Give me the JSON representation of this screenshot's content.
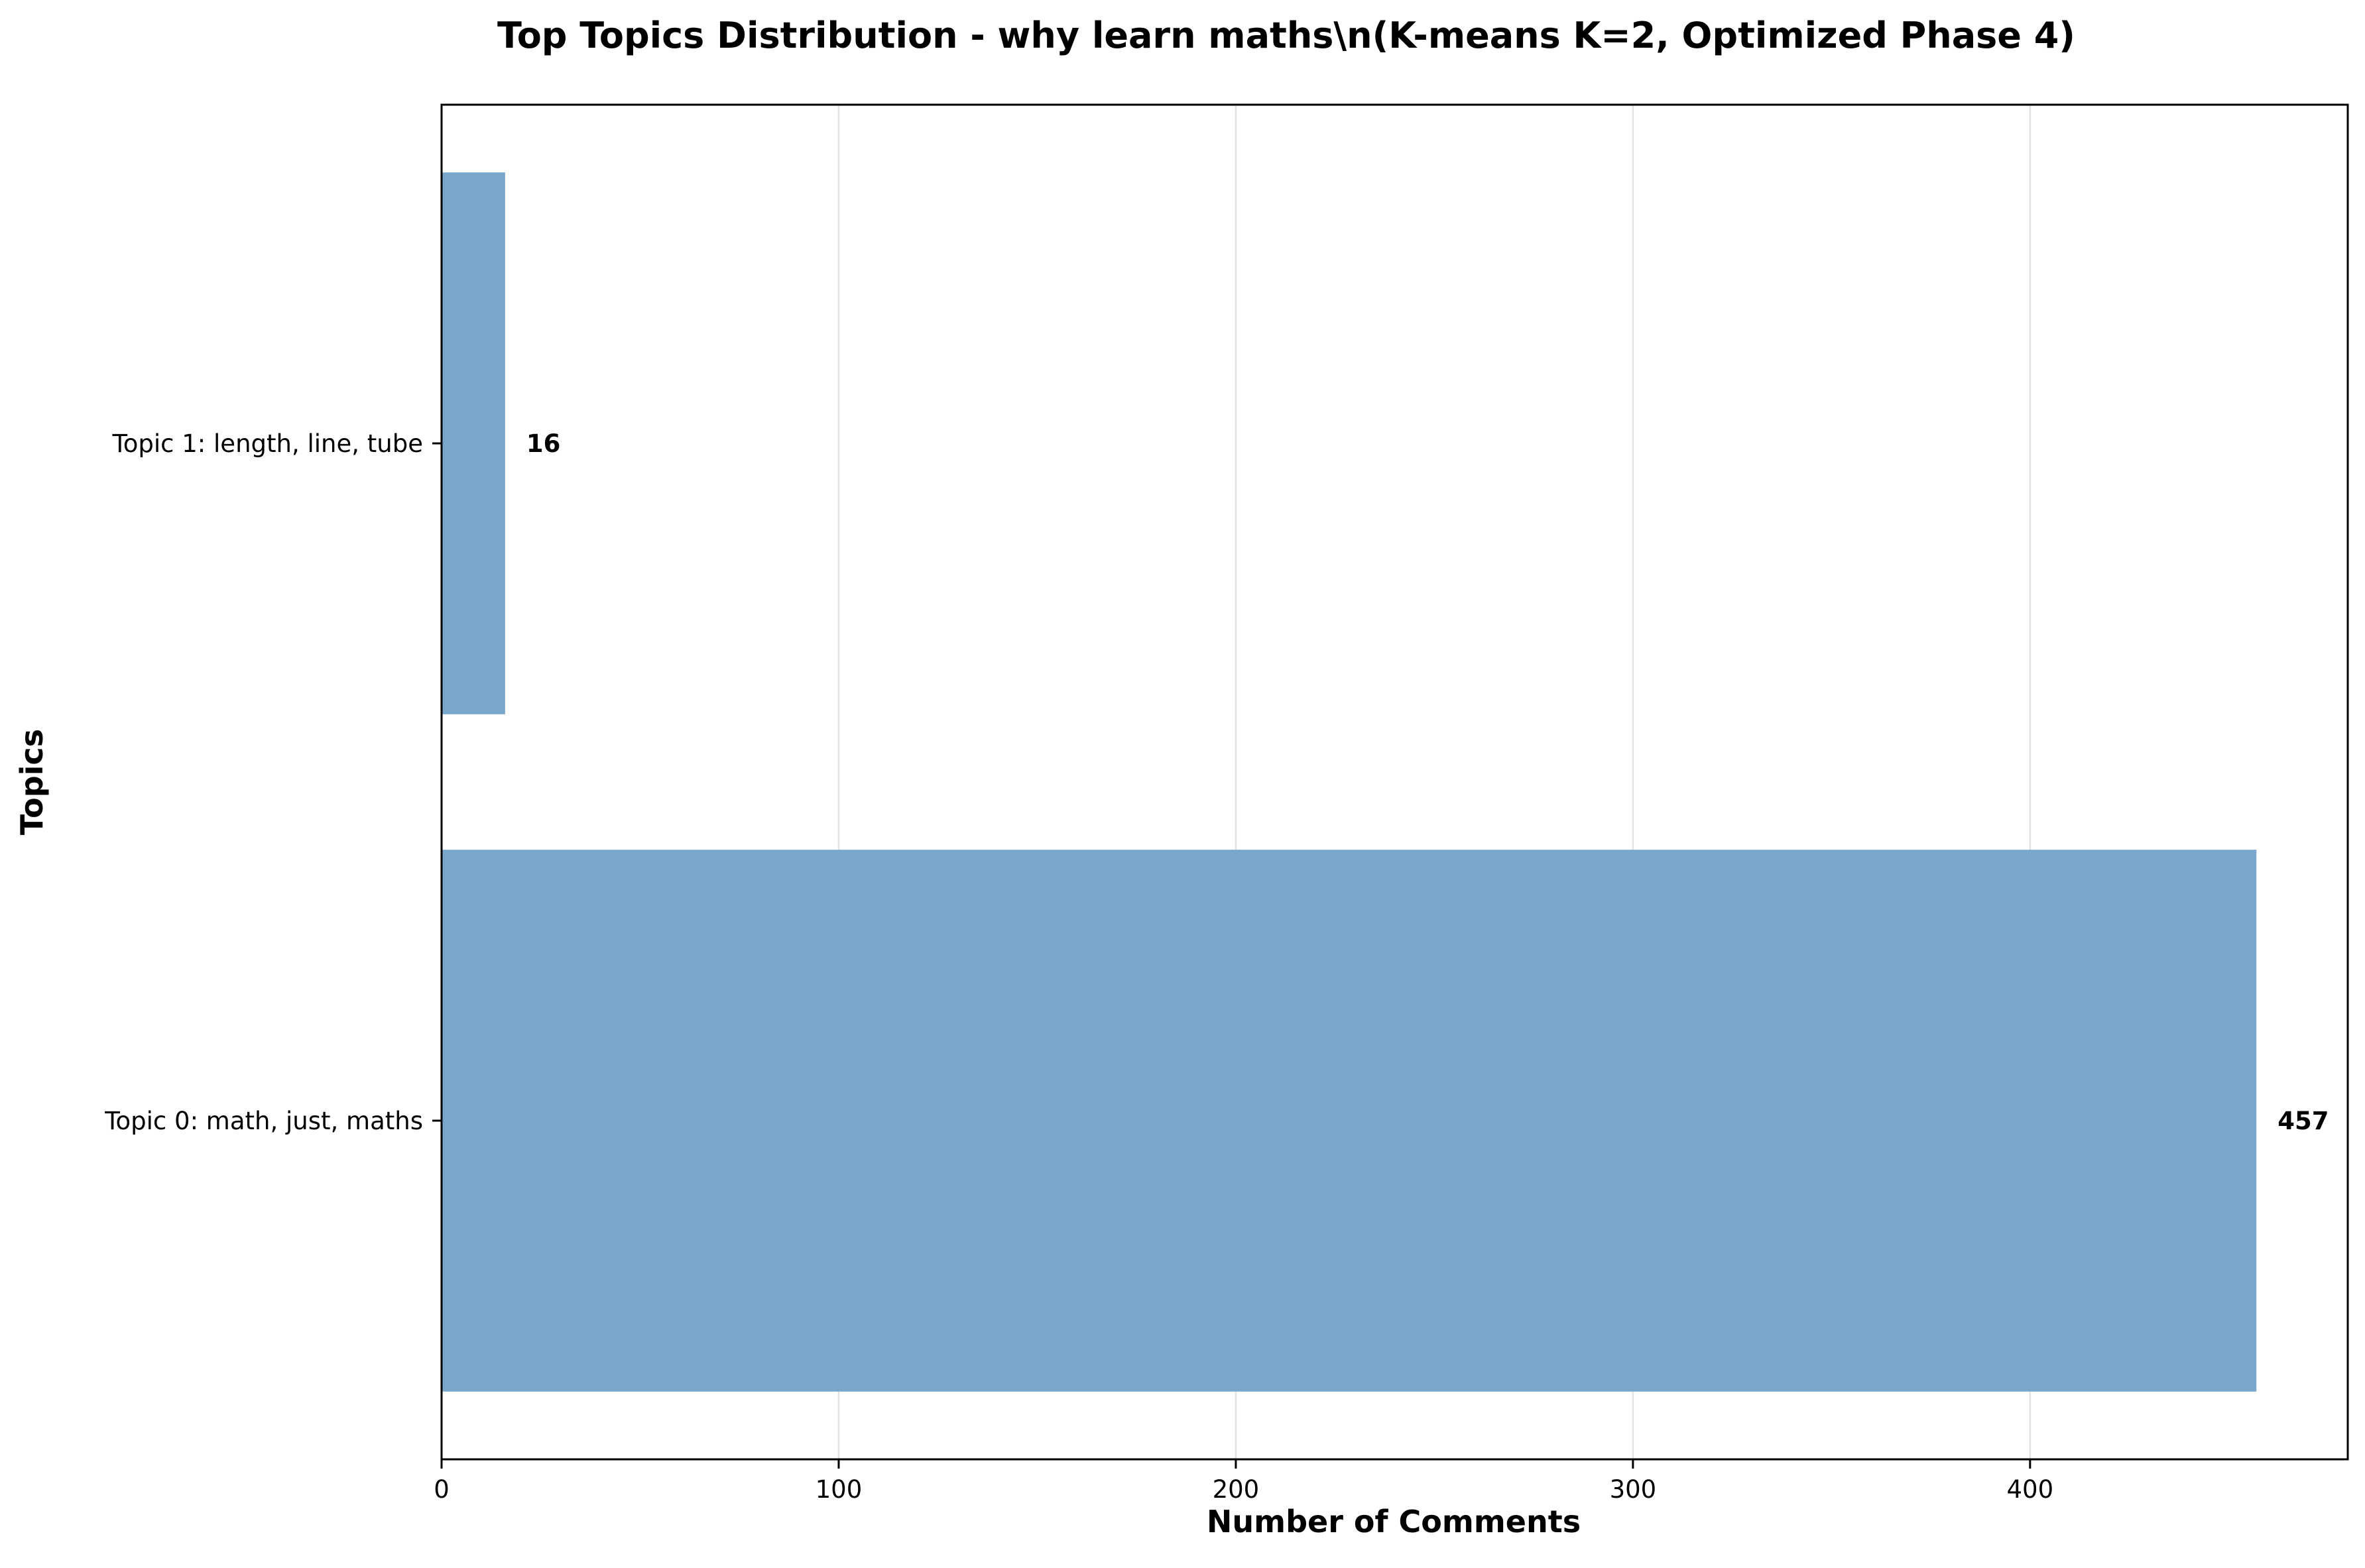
{
  "chart_data": {
    "type": "bar",
    "orientation": "horizontal",
    "title": "Top Topics Distribution - why learn maths\\n(K-means K=2, Optimized Phase 4)",
    "xlabel": "Number of Comments",
    "ylabel": "Topics",
    "categories": [
      "Topic 1: length, line, tube",
      "Topic 0: math, just, maths"
    ],
    "values": [
      16,
      457
    ],
    "value_labels": [
      "16",
      "457"
    ],
    "xlim": [
      0,
      480
    ],
    "xticks": [
      0,
      100,
      200,
      300,
      400
    ],
    "xtick_labels": [
      "0",
      "100",
      "200",
      "300",
      "400"
    ],
    "grid": "x",
    "bar_color": "#7ba6cb"
  }
}
